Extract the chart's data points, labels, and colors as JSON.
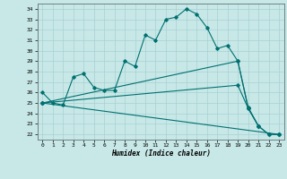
{
  "xlabel": "Humidex (Indice chaleur)",
  "xlim": [
    -0.5,
    23.5
  ],
  "ylim": [
    21.5,
    34.5
  ],
  "xticks": [
    0,
    1,
    2,
    3,
    4,
    5,
    6,
    7,
    8,
    9,
    10,
    11,
    12,
    13,
    14,
    15,
    16,
    17,
    18,
    19,
    20,
    21,
    22,
    23
  ],
  "yticks": [
    22,
    23,
    24,
    25,
    26,
    27,
    28,
    29,
    30,
    31,
    32,
    33,
    34
  ],
  "bg_color": "#c8e8e8",
  "line_color": "#007070",
  "grid_color": "#a8d0d0",
  "line1_x": [
    0,
    1,
    2,
    3,
    4,
    5,
    6,
    7,
    8,
    9,
    10,
    11,
    12,
    13,
    14,
    15,
    16,
    17,
    18,
    19,
    20,
    21
  ],
  "line1_y": [
    26.0,
    25.0,
    24.8,
    27.5,
    27.8,
    26.5,
    26.2,
    26.2,
    29.0,
    28.5,
    31.5,
    31.0,
    33.0,
    33.2,
    34.0,
    33.5,
    32.2,
    30.2,
    30.5,
    29.0,
    24.6,
    22.8
  ],
  "line2_x": [
    0,
    23
  ],
  "line2_y": [
    25.0,
    22.0
  ],
  "line3_x": [
    0,
    19,
    20,
    21,
    22,
    23
  ],
  "line3_y": [
    25.0,
    26.7,
    24.5,
    22.8,
    22.0,
    22.0
  ],
  "line4_x": [
    0,
    19,
    20,
    21,
    22,
    23
  ],
  "line4_y": [
    25.0,
    29.0,
    24.5,
    22.8,
    22.0,
    22.0
  ]
}
